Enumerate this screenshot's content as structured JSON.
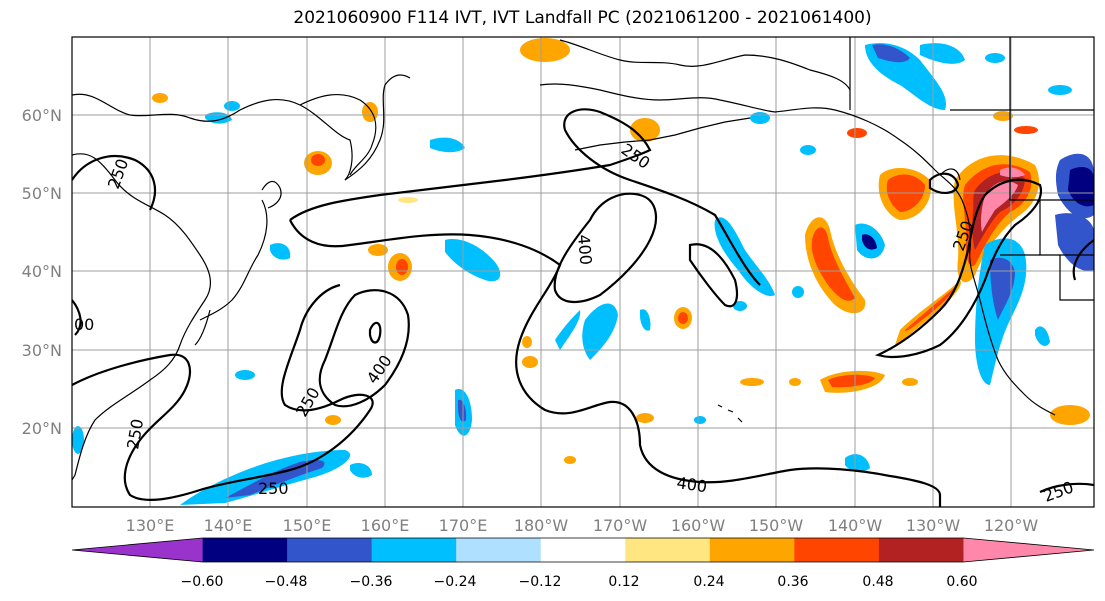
{
  "title": "2021060900 F114 IVT, IVT Landfall PC (2021061200 - 2021061400)",
  "lat_labels": [
    "60°N",
    "50°N",
    "40°N",
    "30°N",
    "20°N"
  ],
  "lon_labels": [
    "130°E",
    "140°E",
    "150°E",
    "160°E",
    "170°E",
    "180°W",
    "170°W",
    "160°W",
    "150°W",
    "140°W",
    "130°W",
    "120°W"
  ],
  "colorbar": {
    "ticks": [
      "−0.60",
      "−0.48",
      "−0.36",
      "−0.24",
      "−0.12",
      "0.12",
      "0.24",
      "0.36",
      "0.48",
      "0.60"
    ],
    "colors": [
      "#9933cc",
      "#000080",
      "#3355cc",
      "#00bfff",
      "#b0e0ff",
      "#ffffff",
      "#ffe680",
      "#ffa500",
      "#ff4500",
      "#b22222",
      "#ff88aa"
    ]
  },
  "contour_labels": [
    "250",
    "250",
    "400",
    "250",
    "400",
    "250",
    "250",
    "250",
    "400",
    "250",
    "00"
  ]
}
